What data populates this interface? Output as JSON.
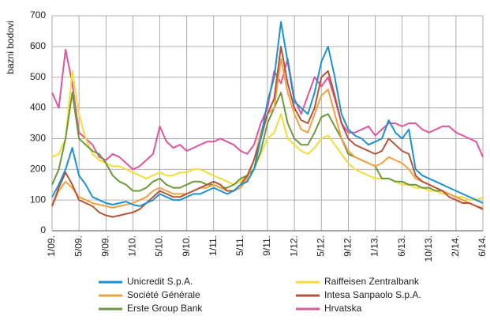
{
  "chart_data": {
    "type": "line",
    "y_label": "bazni bodovi",
    "categories": [
      "1/09.",
      null,
      null,
      null,
      "5/09.",
      null,
      null,
      null,
      "9/09.",
      null,
      null,
      null,
      "1/10.",
      null,
      null,
      null,
      "5/10.",
      null,
      null,
      null,
      "9/10.",
      null,
      null,
      null,
      "1/11.",
      null,
      null,
      null,
      "5/11.",
      null,
      null,
      null,
      "9/11.",
      null,
      null,
      null,
      "1/12.",
      null,
      null,
      null,
      "5/12.",
      null,
      null,
      null,
      "9/12.",
      null,
      null,
      null,
      "1/13.",
      null,
      null,
      null,
      "6/13.",
      null,
      null,
      null,
      "10/13.",
      null,
      null,
      null,
      "2/14.",
      null,
      null,
      null,
      "6/14."
    ],
    "ylim": [
      0,
      700
    ],
    "yticks": [
      0,
      100,
      200,
      300,
      400,
      500,
      600,
      700
    ],
    "grid": true,
    "series": [
      {
        "name": "Hrvatska",
        "color": "#e0569c",
        "values": [
          450,
          400,
          590,
          480,
          320,
          300,
          280,
          240,
          230,
          250,
          240,
          220,
          200,
          210,
          230,
          250,
          340,
          290,
          270,
          280,
          260,
          270,
          280,
          290,
          290,
          300,
          290,
          280,
          260,
          250,
          280,
          350,
          400,
          520,
          480,
          560,
          430,
          380,
          440,
          500,
          470,
          500,
          430,
          350,
          320,
          320,
          330,
          340,
          310,
          330,
          350,
          350,
          340,
          350,
          350,
          330,
          320,
          330,
          340,
          340,
          320,
          310,
          300,
          290,
          240
        ]
      },
      {
        "name": "Raiffeisen Zentralbank",
        "color": "#f5dc3c",
        "values": [
          240,
          250,
          300,
          520,
          380,
          300,
          250,
          230,
          220,
          210,
          210,
          200,
          190,
          180,
          170,
          180,
          190,
          180,
          180,
          190,
          190,
          200,
          200,
          190,
          180,
          170,
          160,
          150,
          160,
          180,
          200,
          250,
          300,
          320,
          380,
          300,
          280,
          260,
          250,
          270,
          300,
          310,
          280,
          250,
          220,
          200,
          190,
          180,
          170,
          170,
          170,
          160,
          150,
          150,
          140,
          140,
          130,
          130,
          120,
          120,
          110,
          110,
          100,
          100,
          110
        ]
      },
      {
        "name": "Erste Group Bank",
        "color": "#6b9a3b",
        "values": [
          150,
          200,
          300,
          450,
          300,
          280,
          260,
          250,
          220,
          180,
          160,
          150,
          130,
          130,
          140,
          160,
          170,
          150,
          140,
          140,
          150,
          160,
          160,
          150,
          150,
          140,
          140,
          150,
          170,
          180,
          200,
          260,
          350,
          400,
          450,
          350,
          300,
          280,
          280,
          320,
          370,
          380,
          340,
          300,
          250,
          240,
          230,
          220,
          210,
          170,
          170,
          160,
          160,
          150,
          150,
          140,
          140,
          130,
          130,
          120,
          110,
          100,
          90,
          80,
          70
        ]
      },
      {
        "name": "Société Générale",
        "color": "#f3a03f",
        "values": [
          80,
          130,
          160,
          140,
          110,
          100,
          90,
          85,
          80,
          75,
          80,
          85,
          90,
          100,
          110,
          130,
          140,
          130,
          120,
          120,
          120,
          130,
          140,
          140,
          150,
          140,
          130,
          130,
          140,
          170,
          230,
          320,
          380,
          400,
          560,
          450,
          380,
          330,
          320,
          380,
          440,
          460,
          380,
          300,
          260,
          240,
          230,
          220,
          210,
          220,
          240,
          230,
          220,
          200,
          170,
          160,
          150,
          140,
          130,
          120,
          110,
          100,
          90,
          80,
          75
        ]
      },
      {
        "name": "Intesa Sanpaolo S.p.A.",
        "color": "#b4553a",
        "values": [
          80,
          140,
          190,
          150,
          100,
          90,
          80,
          60,
          50,
          45,
          50,
          55,
          60,
          70,
          90,
          110,
          130,
          120,
          110,
          110,
          120,
          130,
          140,
          150,
          160,
          150,
          130,
          130,
          150,
          180,
          230,
          300,
          380,
          430,
          600,
          480,
          400,
          360,
          350,
          400,
          500,
          520,
          440,
          350,
          300,
          280,
          270,
          260,
          250,
          260,
          300,
          280,
          260,
          250,
          180,
          160,
          150,
          140,
          130,
          110,
          100,
          90,
          90,
          80,
          70
        ]
      },
      {
        "name": "Unicredit S.p.A.",
        "color": "#1e92d0",
        "values": [
          110,
          150,
          200,
          270,
          180,
          150,
          110,
          100,
          90,
          85,
          90,
          95,
          85,
          80,
          90,
          100,
          120,
          110,
          100,
          100,
          110,
          120,
          120,
          130,
          140,
          130,
          120,
          130,
          150,
          160,
          200,
          300,
          420,
          500,
          680,
          550,
          420,
          400,
          380,
          450,
          550,
          600,
          500,
          380,
          330,
          310,
          300,
          280,
          290,
          300,
          360,
          320,
          300,
          330,
          200,
          180,
          170,
          160,
          150,
          140,
          130,
          120,
          110,
          100,
          90
        ]
      }
    ],
    "legend_order": [
      5,
      3,
      2,
      1,
      4,
      0
    ]
  }
}
